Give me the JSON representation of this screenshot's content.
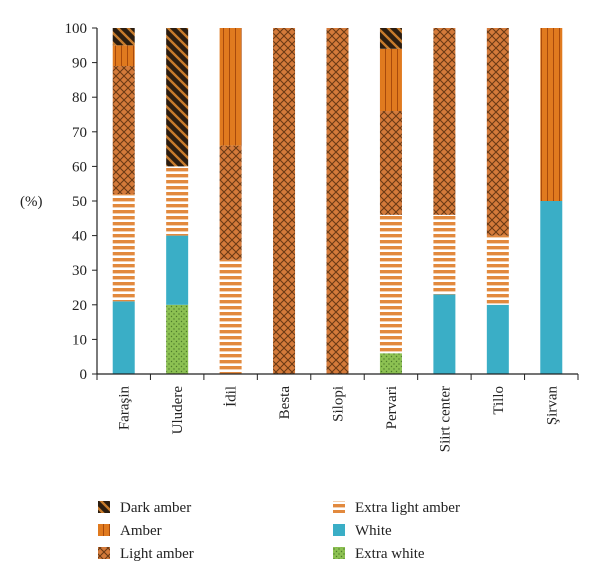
{
  "chart_data": {
    "type": "bar",
    "stacked": true,
    "ylabel": "(%)",
    "ylim": [
      0,
      100
    ],
    "yticks": [
      0,
      10,
      20,
      30,
      40,
      50,
      60,
      70,
      80,
      90,
      100
    ],
    "categories": [
      "Faraşin",
      "Uludere",
      "İdil",
      "Besta",
      "Silopi",
      "Pervari",
      "Siirt center",
      "Tillo",
      "Şirvan"
    ],
    "legend_position": "bottom",
    "series": [
      {
        "name": "Extra white",
        "key": "extra_white",
        "color": "#8cc152",
        "values": [
          0,
          20,
          0,
          0,
          0,
          6,
          0,
          0,
          0
        ]
      },
      {
        "name": "White",
        "key": "white",
        "color": "#3aaec6",
        "values": [
          21,
          20,
          0,
          0,
          0,
          0,
          23,
          20,
          50
        ]
      },
      {
        "name": "Extra light amber",
        "key": "extra_light_amber",
        "color": "#e2893d",
        "values": [
          31,
          20,
          33,
          0,
          0,
          40,
          23,
          20,
          0
        ]
      },
      {
        "name": "Light amber",
        "key": "light_amber",
        "color": "#d6793a",
        "values": [
          37,
          0,
          33,
          100,
          100,
          30,
          54,
          60,
          0
        ]
      },
      {
        "name": "Amber",
        "key": "amber",
        "color": "#e07a1f",
        "values": [
          6,
          0,
          34,
          0,
          0,
          18,
          0,
          0,
          50
        ]
      },
      {
        "name": "Dark amber",
        "key": "dark_amber",
        "color": "#2b1d10",
        "values": [
          5,
          40,
          0,
          0,
          0,
          6,
          0,
          0,
          0
        ]
      }
    ],
    "legend_order": [
      "dark_amber",
      "extra_light_amber",
      "amber",
      "white",
      "light_amber",
      "extra_white"
    ]
  }
}
